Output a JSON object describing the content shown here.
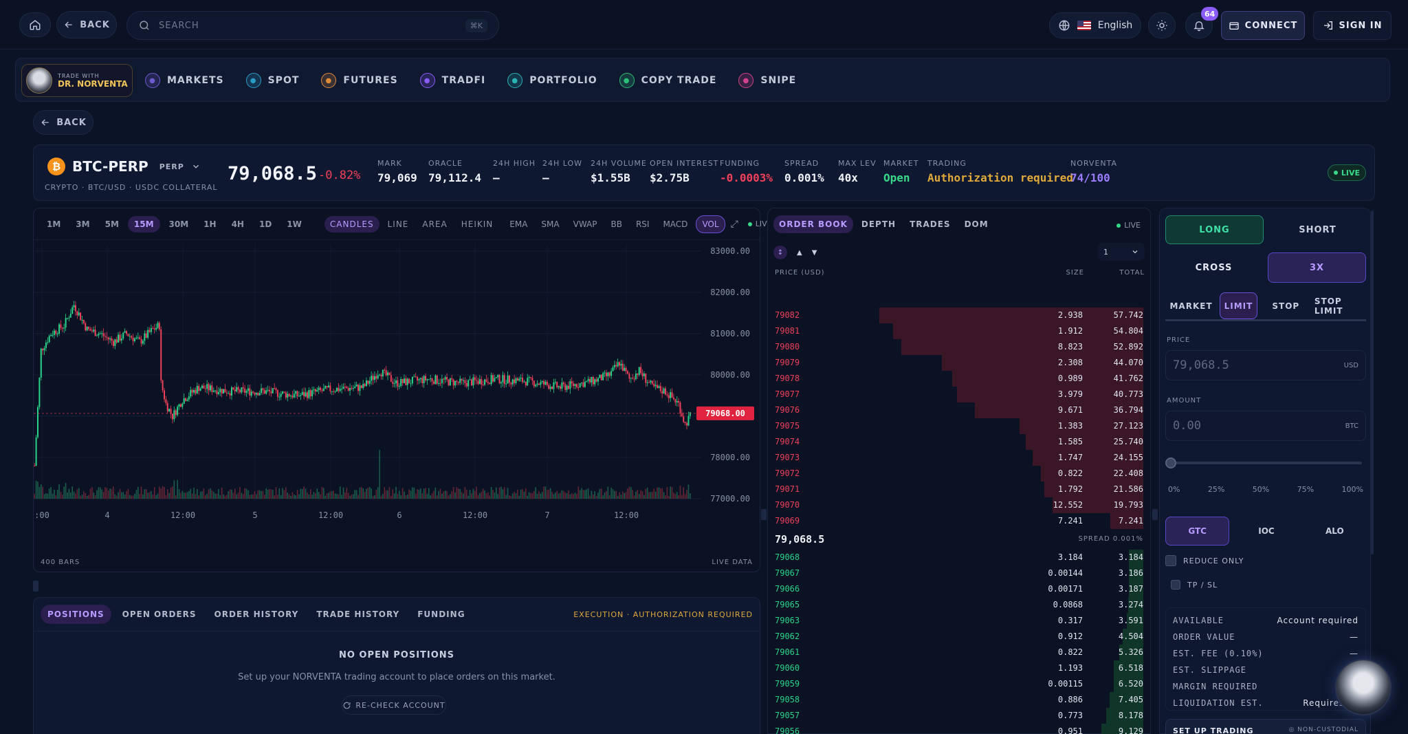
{
  "topbar": {
    "back_label": "BACK",
    "search_placeholder": "SEARCH",
    "search_shortcut": "⌘K",
    "language": "English",
    "notif_count": "64",
    "connect_label": "CONNECT",
    "signin_label": "SIGN IN"
  },
  "nav": {
    "brand_small": "TRADE WITH",
    "brand_large": "DR. NORVENTA",
    "items": [
      {
        "label": "MARKETS",
        "icon": "chart-icon",
        "color": "#6d5bd0"
      },
      {
        "label": "SPOT",
        "icon": "spot-icon",
        "color": "#2a9bc9"
      },
      {
        "label": "FUTURES",
        "icon": "futures-icon",
        "color": "#e08a3b"
      },
      {
        "label": "TRADFI",
        "icon": "tradfi-icon",
        "color": "#8b5cf6"
      },
      {
        "label": "PORTFOLIO",
        "icon": "portfolio-icon",
        "color": "#2ab3b3"
      },
      {
        "label": "COPY TRADE",
        "icon": "copy-icon",
        "color": "#2bbf7a"
      },
      {
        "label": "SNIPE",
        "icon": "target-icon",
        "color": "#d0428a"
      }
    ]
  },
  "page": {
    "back_label": "BACK"
  },
  "ticker": {
    "symbol": "BTC-PERP",
    "type": "PERP",
    "subtitle": "CRYPTO · BTC/USD · USDC COLLATERAL",
    "price": "79,068.5",
    "change": "-0.82%",
    "stats": [
      {
        "label": "MARK",
        "value": "79,069",
        "color": "#eef2f8"
      },
      {
        "label": "ORACLE",
        "value": "79,112.4",
        "color": "#eef2f8"
      },
      {
        "label": "24H HIGH",
        "value": "—",
        "color": "#eef2f8"
      },
      {
        "label": "24H LOW",
        "value": "—",
        "color": "#eef2f8"
      },
      {
        "label": "24H VOLUME",
        "value": "$1.55B",
        "color": "#eef2f8"
      },
      {
        "label": "OPEN INTEREST",
        "value": "$2.75B",
        "color": "#eef2f8"
      },
      {
        "label": "FUNDING",
        "value": "-0.0003%",
        "color": "#f0405a"
      },
      {
        "label": "SPREAD",
        "value": "0.001%",
        "color": "#eef2f8"
      },
      {
        "label": "MAX LEV",
        "value": "40x",
        "color": "#eef2f8"
      },
      {
        "label": "MARKET",
        "value": "Open",
        "color": "#39d98a"
      },
      {
        "label": "TRADING",
        "value": "Authorization required",
        "color": "#e0a93b"
      },
      {
        "label": "NORVENTA",
        "value": "74/100",
        "color": "#9b7cff"
      }
    ],
    "live_label": "LIVE"
  },
  "chart": {
    "timeframes": [
      "1M",
      "3M",
      "5M",
      "15M",
      "30M",
      "1H",
      "4H",
      "1D",
      "1W"
    ],
    "active_timeframe": "15M",
    "chart_types": [
      "CANDLES",
      "LINE",
      "AREA",
      "HEIKIN"
    ],
    "active_type": "CANDLES",
    "indicators": [
      "EMA",
      "SMA",
      "VWAP",
      "BB",
      "RSI",
      "MACD",
      "VOL"
    ],
    "active_indicator": "VOL",
    "live_label": "LIVE",
    "bars_label": "400 BARS",
    "live_data_label": "LIVE DATA"
  },
  "chart_data": {
    "type": "candlestick",
    "y_ticks": [
      "83000.00",
      "82000.00",
      "81000.00",
      "80000.00",
      "79000.00",
      "78000.00",
      "77000.00"
    ],
    "ylim": [
      77000,
      83000
    ],
    "x_ticks": [
      ":00",
      "4",
      "12:00",
      "5",
      "12:00",
      "6",
      "12:00",
      "7",
      "12:00"
    ],
    "current_price_label": "79068.00",
    "current_price": 79068,
    "bar_count": 400,
    "shape_points": [
      [
        0,
        77800
      ],
      [
        4,
        80600
      ],
      [
        10,
        81000
      ],
      [
        18,
        81200
      ],
      [
        24,
        81700
      ],
      [
        32,
        81100
      ],
      [
        40,
        81000
      ],
      [
        48,
        80800
      ],
      [
        56,
        81000
      ],
      [
        64,
        80800
      ],
      [
        72,
        81100
      ],
      [
        76,
        81200
      ],
      [
        77,
        79800
      ],
      [
        80,
        79300
      ],
      [
        84,
        79000
      ],
      [
        90,
        79400
      ],
      [
        100,
        79700
      ],
      [
        120,
        79600
      ],
      [
        140,
        79600
      ],
      [
        160,
        79500
      ],
      [
        180,
        79650
      ],
      [
        200,
        79700
      ],
      [
        210,
        80100
      ],
      [
        220,
        79800
      ],
      [
        240,
        79900
      ],
      [
        260,
        79800
      ],
      [
        280,
        79900
      ],
      [
        300,
        79850
      ],
      [
        320,
        79700
      ],
      [
        340,
        79850
      ],
      [
        350,
        80000
      ],
      [
        356,
        80300
      ],
      [
        362,
        79900
      ],
      [
        368,
        80100
      ],
      [
        376,
        79700
      ],
      [
        384,
        79600
      ],
      [
        392,
        79300
      ],
      [
        396,
        78800
      ],
      [
        400,
        79068
      ]
    ]
  },
  "positions": {
    "tabs": [
      "POSITIONS",
      "OPEN ORDERS",
      "ORDER HISTORY",
      "TRADE HISTORY",
      "FUNDING"
    ],
    "active_tab": "POSITIONS",
    "auth_notice": "EXECUTION · AUTHORIZATION REQUIRED",
    "empty_title": "NO OPEN POSITIONS",
    "empty_sub": "Set up your NORVENTA trading account to place orders on this market.",
    "recheck_label": "RE-CHECK ACCOUNT"
  },
  "orderbook": {
    "tabs": [
      "ORDER BOOK",
      "DEPTH",
      "TRADES",
      "DOM"
    ],
    "active_tab": "ORDER BOOK",
    "live_label": "LIVE",
    "grouping": "1",
    "col_price": "PRICE (USD)",
    "col_size": "SIZE",
    "col_total": "TOTAL",
    "asks": [
      {
        "price": "79082",
        "size": "2.938",
        "total": "57.742",
        "depth": 57.742
      },
      {
        "price": "79081",
        "size": "1.912",
        "total": "54.804",
        "depth": 54.804
      },
      {
        "price": "79080",
        "size": "8.823",
        "total": "52.892",
        "depth": 52.892
      },
      {
        "price": "79079",
        "size": "2.308",
        "total": "44.070",
        "depth": 44.07
      },
      {
        "price": "79078",
        "size": "0.989",
        "total": "41.762",
        "depth": 41.762
      },
      {
        "price": "79077",
        "size": "3.979",
        "total": "40.773",
        "depth": 40.773
      },
      {
        "price": "79076",
        "size": "9.671",
        "total": "36.794",
        "depth": 36.794
      },
      {
        "price": "79075",
        "size": "1.383",
        "total": "27.123",
        "depth": 27.123
      },
      {
        "price": "79074",
        "size": "1.585",
        "total": "25.740",
        "depth": 25.74
      },
      {
        "price": "79073",
        "size": "1.747",
        "total": "24.155",
        "depth": 24.155
      },
      {
        "price": "79072",
        "size": "0.822",
        "total": "22.408",
        "depth": 22.408
      },
      {
        "price": "79071",
        "size": "1.792",
        "total": "21.586",
        "depth": 21.586
      },
      {
        "price": "79070",
        "size": "12.552",
        "total": "19.793",
        "depth": 19.793
      },
      {
        "price": "79069",
        "size": "7.241",
        "total": "7.241",
        "depth": 7.241
      }
    ],
    "mid_price": "79,068.5",
    "spread_label": "SPREAD 0.001%",
    "bids": [
      {
        "price": "79068",
        "size": "3.184",
        "total": "3.184",
        "depth": 3.184
      },
      {
        "price": "79067",
        "size": "0.00144",
        "total": "3.186",
        "depth": 3.186
      },
      {
        "price": "79066",
        "size": "0.00171",
        "total": "3.187",
        "depth": 3.187
      },
      {
        "price": "79065",
        "size": "0.0868",
        "total": "3.274",
        "depth": 3.274
      },
      {
        "price": "79063",
        "size": "0.317",
        "total": "3.591",
        "depth": 3.591
      },
      {
        "price": "79062",
        "size": "0.912",
        "total": "4.504",
        "depth": 4.504
      },
      {
        "price": "79061",
        "size": "0.822",
        "total": "5.326",
        "depth": 5.326
      },
      {
        "price": "79060",
        "size": "1.193",
        "total": "6.518",
        "depth": 6.518
      },
      {
        "price": "79059",
        "size": "0.00115",
        "total": "6.520",
        "depth": 6.52
      },
      {
        "price": "79058",
        "size": "0.886",
        "total": "7.405",
        "depth": 7.405
      },
      {
        "price": "79057",
        "size": "0.773",
        "total": "8.178",
        "depth": 8.178
      },
      {
        "price": "79056",
        "size": "0.951",
        "total": "9.129",
        "depth": 9.129
      }
    ]
  },
  "trade": {
    "long_label": "LONG",
    "short_label": "SHORT",
    "cross_label": "CROSS",
    "leverage_label": "3X",
    "order_types": [
      "MARKET",
      "LIMIT",
      "STOP",
      "STOP LIMIT"
    ],
    "active_order_type": "LIMIT",
    "price_label": "PRICE",
    "price_placeholder": "79,068.5",
    "price_unit": "USD",
    "amount_label": "AMOUNT",
    "amount_placeholder": "0.00",
    "amount_unit": "BTC",
    "amount_slider_fraction": 0,
    "percents": [
      "0%",
      "25%",
      "50%",
      "75%",
      "100%"
    ],
    "tif": [
      "GTC",
      "IOC",
      "ALO"
    ],
    "active_tif": "GTC",
    "reduce_only": "REDUCE ONLY",
    "tpsl": "TP / SL",
    "summary": [
      {
        "k": "AVAILABLE",
        "v": "Account required"
      },
      {
        "k": "ORDER VALUE",
        "v": "—"
      },
      {
        "k": "EST. FEE (0.10%)",
        "v": "—"
      },
      {
        "k": "EST. SLIPPAGE",
        "v": ""
      },
      {
        "k": "MARGIN REQUIRED",
        "v": ""
      },
      {
        "k": "LIQUIDATION EST.",
        "v": "Requires ac"
      }
    ],
    "setup_label": "SET UP TRADING",
    "noncustodial": "NON-CUSTODIAL"
  }
}
